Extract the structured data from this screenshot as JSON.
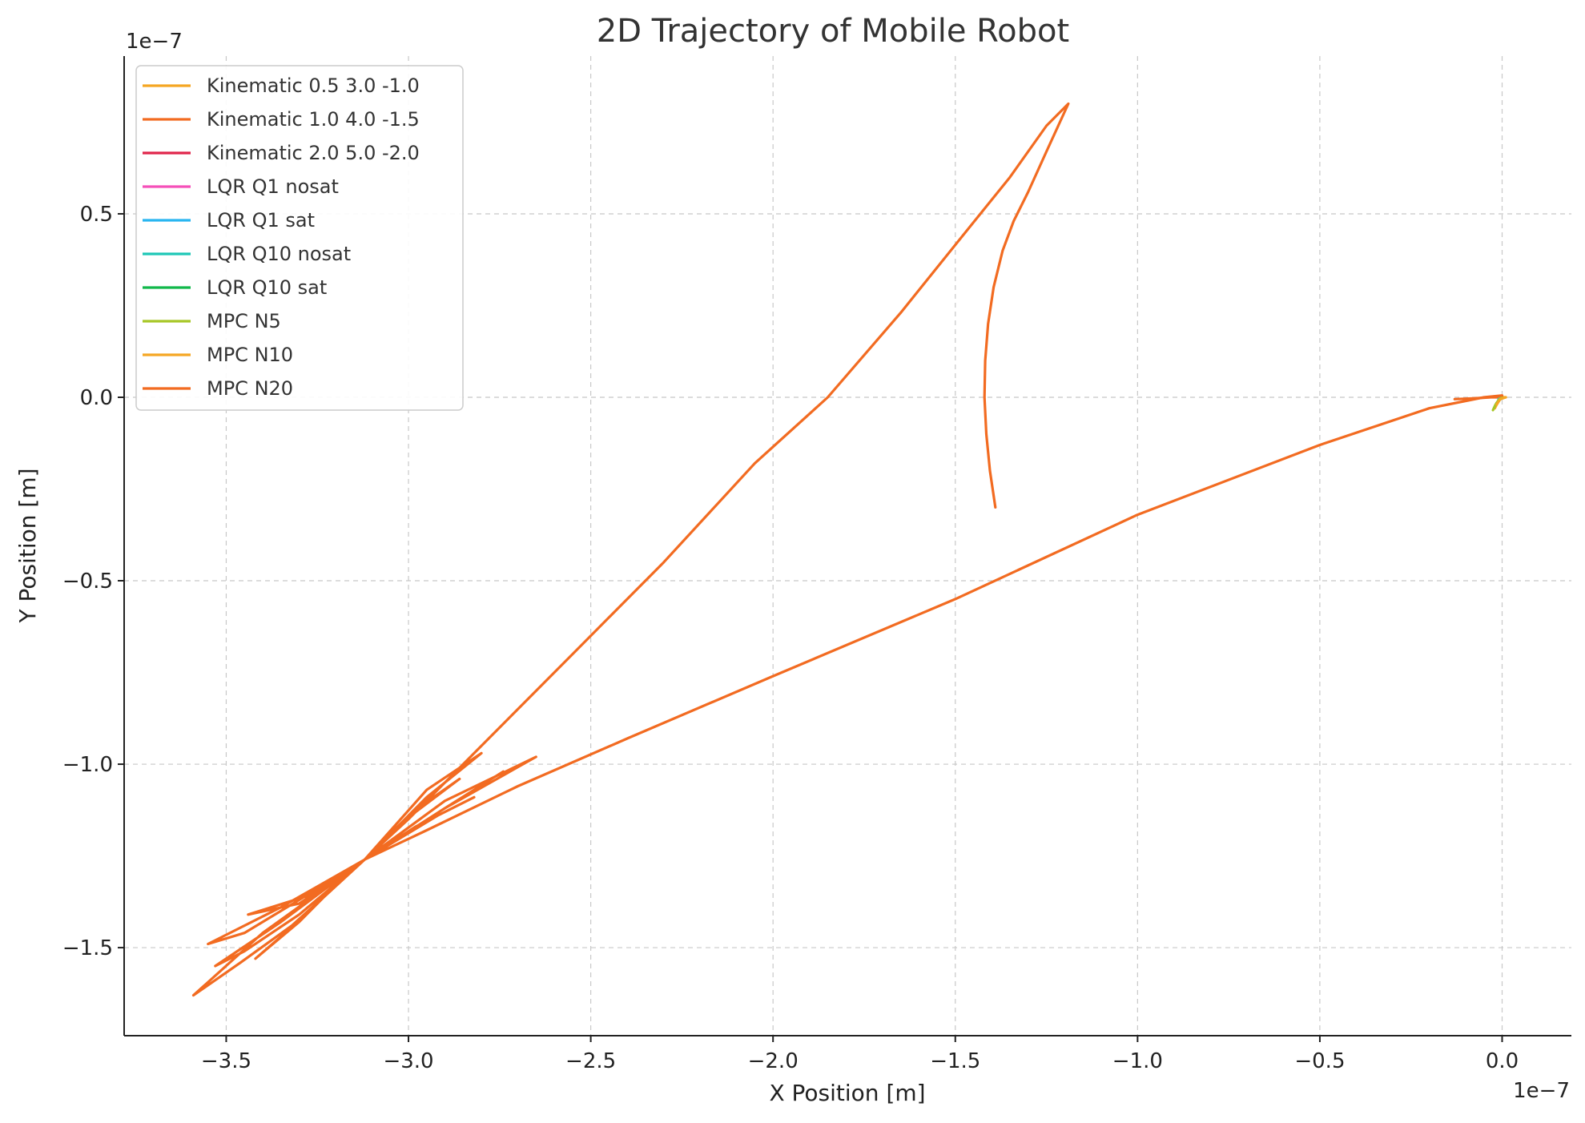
{
  "chart_data": {
    "type": "line",
    "title": "2D Trajectory of Mobile Robot",
    "xlabel": "X Position [m]",
    "ylabel": "Y Position [m]",
    "x_offset_text": "1e−7",
    "y_offset_text": "1e−7",
    "xlim": [
      -3.78,
      0.19
    ],
    "ylim": [
      -1.74,
      0.93
    ],
    "xticks": [
      -3.5,
      -3.0,
      -2.5,
      -2.0,
      -1.5,
      -1.0,
      -0.5,
      0.0
    ],
    "xtick_labels": [
      "−3.5",
      "−3.0",
      "−2.5",
      "−2.0",
      "−1.5",
      "−1.0",
      "−0.5",
      "0.0"
    ],
    "yticks": [
      -1.5,
      -1.0,
      -0.5,
      0.0,
      0.5
    ],
    "ytick_labels": [
      "−1.5",
      "−1.0",
      "−0.5",
      "0.0",
      "0.5"
    ],
    "grid": true,
    "legend_position": "top-left",
    "series": [
      {
        "name": "Kinematic 0.5 3.0 -1.0",
        "color": "#f5a623",
        "points": [
          [
            -0.02,
            -0.03
          ],
          [
            -0.01,
            -0.01
          ],
          [
            0.0,
            0.0
          ],
          [
            0.01,
            0.0
          ]
        ]
      },
      {
        "name": "Kinematic 1.0 4.0 -1.5",
        "color": "#f26b21",
        "points": [
          [
            -0.13,
            -0.005
          ],
          [
            -0.08,
            -0.003
          ],
          [
            -0.03,
            0.0
          ],
          [
            0.0,
            0.0
          ]
        ]
      },
      {
        "name": "Kinematic 2.0 5.0 -2.0",
        "color": "#e0264b",
        "points": [
          [
            -0.015,
            -0.015
          ],
          [
            0.0,
            0.0
          ]
        ]
      },
      {
        "name": "LQR Q1 nosat",
        "color": "#f54fb9",
        "points": [
          [
            -0.01,
            -0.01
          ],
          [
            0.0,
            0.0
          ]
        ]
      },
      {
        "name": "LQR Q1 sat",
        "color": "#27b5f0",
        "points": [
          [
            -0.01,
            -0.005
          ],
          [
            0.0,
            0.0
          ]
        ]
      },
      {
        "name": "LQR Q10 nosat",
        "color": "#1ec7b6",
        "points": [
          [
            -0.008,
            -0.008
          ],
          [
            0.0,
            0.0
          ]
        ]
      },
      {
        "name": "LQR Q10 sat",
        "color": "#11b84a",
        "points": [
          [
            -0.005,
            -0.004
          ],
          [
            0.0,
            0.0
          ]
        ]
      },
      {
        "name": "MPC N5",
        "color": "#a6c625",
        "points": [
          [
            -0.025,
            -0.035
          ],
          [
            -0.018,
            -0.02
          ],
          [
            -0.008,
            -0.005
          ],
          [
            0.0,
            0.0
          ]
        ]
      },
      {
        "name": "MPC N10",
        "color": "#f5a623",
        "points": [
          [
            -0.015,
            -0.02
          ],
          [
            -0.005,
            -0.005
          ],
          [
            0.01,
            0.0
          ]
        ]
      },
      {
        "name": "MPC N20",
        "color": "#f26b21",
        "points": [
          [
            -1.39,
            -0.3
          ],
          [
            -1.405,
            -0.2
          ],
          [
            -1.415,
            -0.1
          ],
          [
            -1.42,
            0.0
          ],
          [
            -1.418,
            0.1
          ],
          [
            -1.41,
            0.2
          ],
          [
            -1.395,
            0.3
          ],
          [
            -1.37,
            0.4
          ],
          [
            -1.34,
            0.48
          ],
          [
            -1.3,
            0.56
          ],
          [
            -1.25,
            0.67
          ],
          [
            -1.19,
            0.8
          ],
          [
            -1.25,
            0.74
          ],
          [
            -1.35,
            0.6
          ],
          [
            -1.48,
            0.44
          ],
          [
            -1.65,
            0.23
          ],
          [
            -1.85,
            0.0
          ],
          [
            -2.05,
            -0.18
          ],
          [
            -2.3,
            -0.45
          ],
          [
            -2.55,
            -0.7
          ],
          [
            -2.8,
            -0.95
          ],
          [
            -3.0,
            -1.15
          ],
          [
            -3.12,
            -1.26
          ],
          [
            -3.2,
            -1.33
          ],
          [
            -3.3,
            -1.43
          ],
          [
            -3.42,
            -1.53
          ],
          [
            -3.35,
            -1.47
          ],
          [
            -3.12,
            -1.26
          ],
          [
            -2.95,
            -1.07
          ],
          [
            -2.8,
            -0.97
          ],
          [
            -2.95,
            -1.09
          ],
          [
            -3.12,
            -1.26
          ],
          [
            -3.3,
            -1.37
          ],
          [
            -3.45,
            -1.46
          ],
          [
            -3.55,
            -1.49
          ],
          [
            -3.35,
            -1.39
          ],
          [
            -3.12,
            -1.26
          ],
          [
            -2.9,
            -1.12
          ],
          [
            -2.74,
            -1.02
          ],
          [
            -2.9,
            -1.12
          ],
          [
            -3.12,
            -1.26
          ],
          [
            -3.3,
            -1.41
          ],
          [
            -3.45,
            -1.51
          ],
          [
            -3.53,
            -1.55
          ],
          [
            -3.35,
            -1.43
          ],
          [
            -3.12,
            -1.26
          ],
          [
            -2.92,
            -1.14
          ],
          [
            -2.82,
            -1.09
          ],
          [
            -2.98,
            -1.17
          ],
          [
            -3.12,
            -1.26
          ],
          [
            -3.28,
            -1.36
          ],
          [
            -3.44,
            -1.41
          ],
          [
            -3.3,
            -1.38
          ],
          [
            -3.12,
            -1.26
          ],
          [
            -2.96,
            -1.11
          ],
          [
            -2.86,
            -1.04
          ],
          [
            -2.98,
            -1.13
          ],
          [
            -3.12,
            -1.26
          ],
          [
            -3.32,
            -1.44
          ],
          [
            -3.46,
            -1.54
          ],
          [
            -3.59,
            -1.63
          ],
          [
            -3.4,
            -1.46
          ],
          [
            -3.12,
            -1.26
          ],
          [
            -2.9,
            -1.12
          ],
          [
            -2.65,
            -0.98
          ],
          [
            -2.9,
            -1.1
          ],
          [
            -3.12,
            -1.26
          ],
          [
            -2.95,
            -1.18
          ],
          [
            -2.7,
            -1.06
          ],
          [
            -2.4,
            -0.93
          ],
          [
            -2.0,
            -0.76
          ],
          [
            -1.5,
            -0.55
          ],
          [
            -1.0,
            -0.32
          ],
          [
            -0.5,
            -0.13
          ],
          [
            -0.2,
            -0.03
          ],
          [
            -0.05,
            0.0
          ],
          [
            0.0,
            0.005
          ]
        ]
      }
    ]
  }
}
